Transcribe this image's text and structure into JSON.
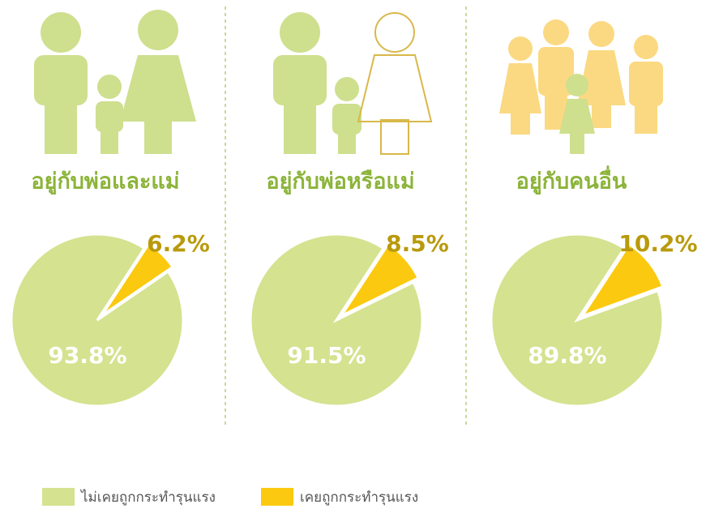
{
  "chart_data": [
    {
      "type": "pie",
      "title": "อยู่กับพ่อและแม่",
      "values": [
        93.8,
        6.2
      ],
      "value_labels": [
        "93.8%",
        "6.2%"
      ],
      "colors": [
        "#d5e28f",
        "#fbc90f"
      ]
    },
    {
      "type": "pie",
      "title": "อยู่กับพ่อหรือแม่",
      "values": [
        91.5,
        8.5
      ],
      "value_labels": [
        "91.5%",
        "8.5%"
      ],
      "colors": [
        "#d5e28f",
        "#fbc90f"
      ]
    },
    {
      "type": "pie",
      "title": "อยู่กับคนอื่น",
      "values": [
        89.8,
        10.2
      ],
      "value_labels": [
        "89.8%",
        "10.2%"
      ],
      "colors": [
        "#d5e28f",
        "#fbc90f"
      ]
    }
  ],
  "legend": {
    "labels": [
      "ไม่เคยถูกกระทำรุนแรง",
      "เคยถูกกระทำรุนแรง"
    ],
    "colors": [
      "#d5e28f",
      "#fbc90f"
    ]
  }
}
